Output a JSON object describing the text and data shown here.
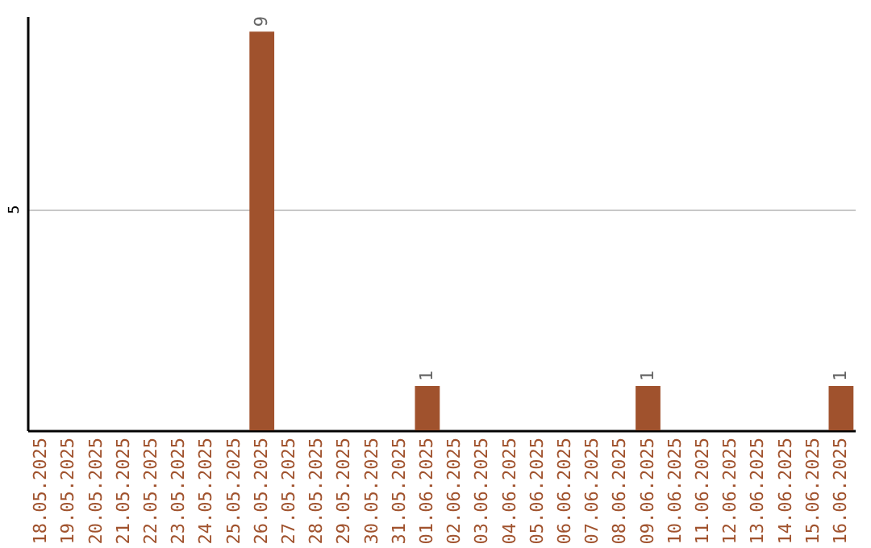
{
  "chart_data": {
    "type": "bar",
    "categories": [
      "18.05.2025",
      "19.05.2025",
      "20.05.2025",
      "21.05.2025",
      "22.05.2025",
      "23.05.2025",
      "24.05.2025",
      "25.05.2025",
      "26.05.2025",
      "27.05.2025",
      "28.05.2025",
      "29.05.2025",
      "30.05.2025",
      "31.05.2025",
      "01.06.2025",
      "02.06.2025",
      "03.06.2025",
      "04.06.2025",
      "05.06.2025",
      "06.06.2025",
      "07.06.2025",
      "08.06.2025",
      "09.06.2025",
      "10.06.2025",
      "11.06.2025",
      "12.06.2025",
      "13.06.2025",
      "14.06.2025",
      "15.06.2025",
      "16.06.2025"
    ],
    "values": [
      0,
      0,
      0,
      0,
      0,
      0,
      0,
      0,
      9,
      0,
      0,
      0,
      0,
      0,
      1,
      0,
      0,
      0,
      0,
      0,
      0,
      0,
      1,
      0,
      0,
      0,
      0,
      0,
      0,
      1
    ],
    "value_labels": [
      null,
      null,
      null,
      null,
      null,
      null,
      null,
      null,
      "9",
      null,
      null,
      null,
      null,
      null,
      "1",
      null,
      null,
      null,
      null,
      null,
      null,
      null,
      "1",
      null,
      null,
      null,
      null,
      null,
      null,
      "1"
    ],
    "color": "#a0522d",
    "ylim": [
      0,
      9.35
    ],
    "yticks": [
      5
    ],
    "grid": "y"
  }
}
